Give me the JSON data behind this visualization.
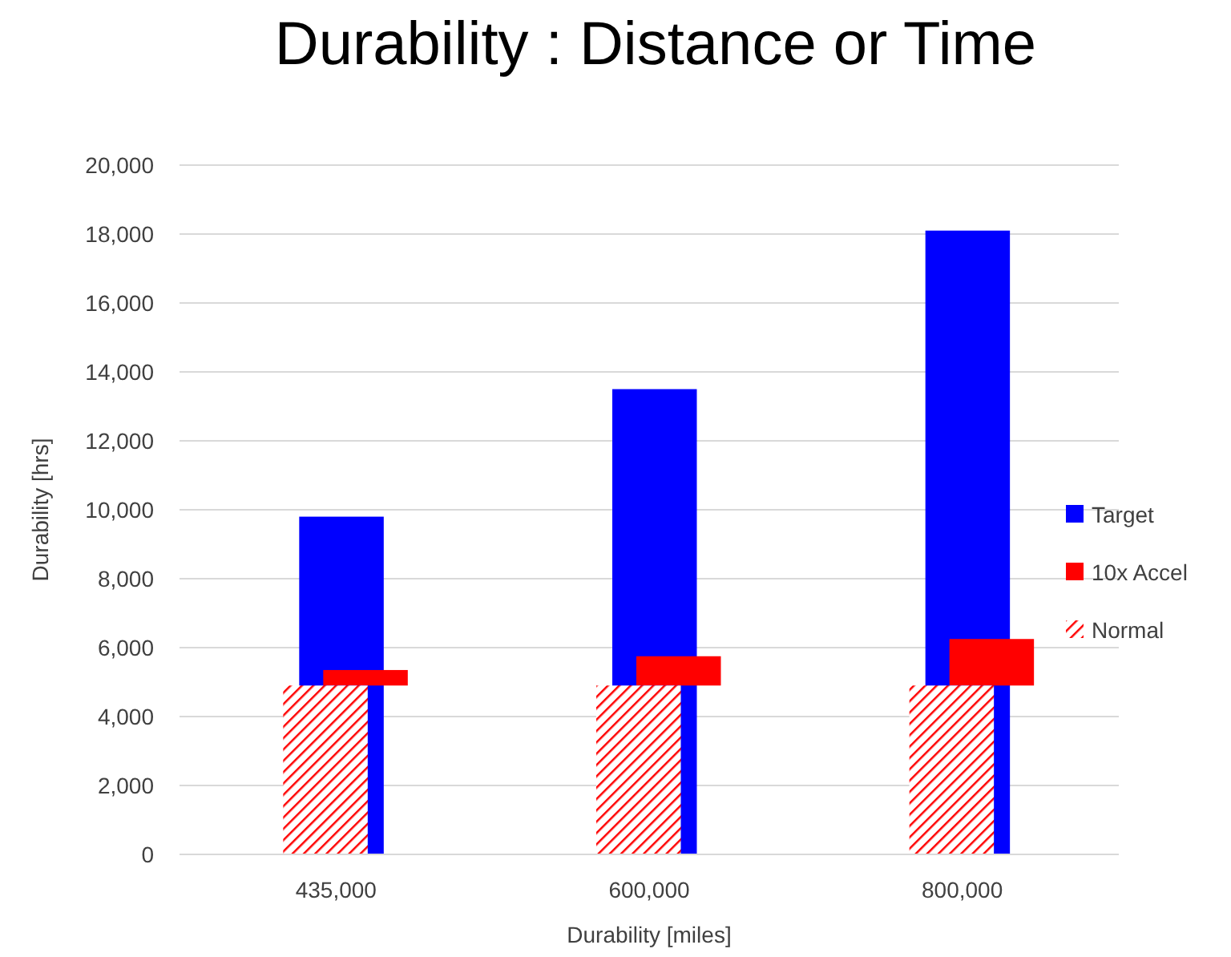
{
  "chart_data": {
    "type": "bar",
    "title": "Durability : Distance or Time",
    "xlabel": "Durability [miles]",
    "ylabel": "Durability [hrs]",
    "categories": [
      "435,000",
      "600,000",
      "800,000"
    ],
    "series": [
      {
        "name": "Target",
        "color": "#0000ff",
        "values": [
          9800,
          13500,
          18100
        ]
      },
      {
        "name": "10x Accel",
        "color": "#ff0000",
        "values": [
          450,
          850,
          1350
        ],
        "base": [
          4900,
          4900,
          4900
        ]
      },
      {
        "name": "Normal",
        "color": "#ff0000",
        "values": [
          4900,
          4900,
          4900
        ]
      }
    ],
    "ylim": [
      0,
      20000
    ],
    "yticks": [
      {
        "value": 0,
        "label": "0"
      },
      {
        "value": 2000,
        "label": "2,000"
      },
      {
        "value": 4000,
        "label": "4,000"
      },
      {
        "value": 6000,
        "label": "6,000"
      },
      {
        "value": 8000,
        "label": "8,000"
      },
      {
        "value": 10000,
        "label": "10,000"
      },
      {
        "value": 12000,
        "label": "12,000"
      },
      {
        "value": 14000,
        "label": "14,000"
      },
      {
        "value": 16000,
        "label": "16,000"
      },
      {
        "value": 18000,
        "label": "18,000"
      },
      {
        "value": 20000,
        "label": "20,000"
      }
    ],
    "grid": "y",
    "legend": "right"
  }
}
